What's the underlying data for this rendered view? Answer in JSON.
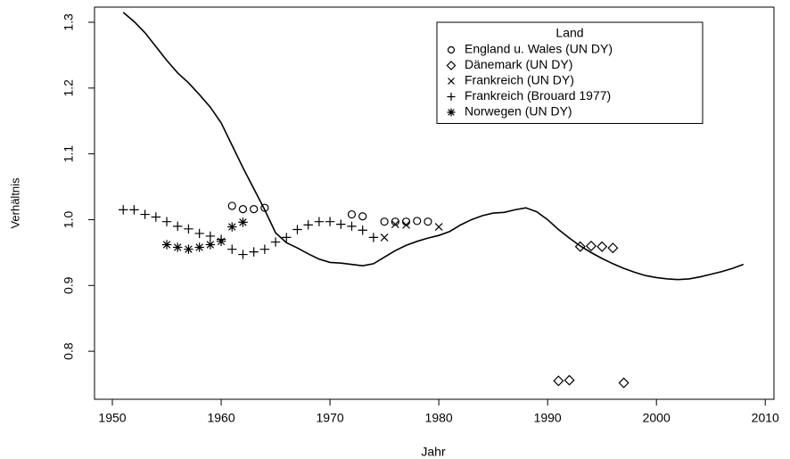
{
  "chart_data": {
    "type": "scatter",
    "x_label": "Jahr",
    "y_label": "Verhältnis",
    "color": "#000000",
    "xlim": [
      1948.36,
      2010.8
    ],
    "ylim": [
      0.727,
      1.323
    ],
    "xticks": [
      1950,
      1960,
      1970,
      1980,
      1990,
      2000,
      2010
    ],
    "yticks": [
      0.8,
      0.9,
      {
        "value": 1,
        "label": "1.0"
      },
      1.1,
      1.2,
      1.3
    ],
    "legend_title": "Land",
    "legend_position": "topright",
    "series": [
      {
        "marker": "line",
        "x": [
          1951,
          1952,
          1953,
          1954,
          1955,
          1956,
          1957,
          1958,
          1959,
          1960,
          1961,
          1962,
          1963,
          1964,
          1965,
          1966,
          1967,
          1968,
          1969,
          1970,
          1971,
          1972,
          1973,
          1974,
          1975,
          1976,
          1977,
          1978,
          1979,
          1980,
          1981,
          1982,
          1983,
          1984,
          1985,
          1986,
          1987,
          1988,
          1989,
          1990,
          1991,
          1992,
          1993,
          1994,
          1995,
          1996,
          1997,
          1998,
          1999,
          2000,
          2001,
          2002,
          2003,
          2004,
          2005,
          2006,
          2007,
          2008
        ],
        "values": [
          1.315,
          1.301,
          1.284,
          1.263,
          1.242,
          1.223,
          1.208,
          1.19,
          1.171,
          1.147,
          1.113,
          1.079,
          1.047,
          1.015,
          0.98,
          0.965,
          0.957,
          0.948,
          0.94,
          0.935,
          0.934,
          0.932,
          0.93,
          0.933,
          0.943,
          0.953,
          0.961,
          0.967,
          0.972,
          0.976,
          0.982,
          0.992,
          1.0,
          1.006,
          1.01,
          1.011,
          1.015,
          1.018,
          1.012,
          1.0,
          0.985,
          0.972,
          0.96,
          0.95,
          0.941,
          0.933,
          0.926,
          0.92,
          0.915,
          0.912,
          0.91,
          0.909,
          0.91,
          0.913,
          0.917,
          0.921,
          0.926,
          0.932
        ]
      },
      {
        "name": "England u. Wales (UN DY)",
        "marker": "circle",
        "x": [
          1961,
          1962,
          1963,
          1964,
          1972,
          1973,
          1975,
          1976,
          1977,
          1978,
          1979
        ],
        "values": [
          1.021,
          1.016,
          1.016,
          1.018,
          1.008,
          1.005,
          0.997,
          0.997,
          0.997,
          0.998,
          0.997
        ]
      },
      {
        "name": "Dänemark (UN DY)",
        "marker": "diamond",
        "x": [
          1991,
          1992,
          1993,
          1994,
          1995,
          1996,
          1997
        ],
        "values": [
          0.755,
          0.756,
          0.959,
          0.96,
          0.959,
          0.957,
          0.752
        ]
      },
      {
        "name": "Frankreich (UN DY)",
        "marker": "cross",
        "x": [
          1975,
          1976,
          1977,
          1980
        ],
        "values": [
          0.973,
          0.993,
          0.992,
          0.989
        ]
      },
      {
        "name": "Frankreich (Brouard 1977)",
        "marker": "plus",
        "x": [
          1951,
          1952,
          1953,
          1954,
          1955,
          1956,
          1957,
          1958,
          1959,
          1960,
          1961,
          1962,
          1963,
          1964,
          1965,
          1966,
          1967,
          1968,
          1969,
          1970,
          1971,
          1972,
          1973,
          1974
        ],
        "values": [
          1.015,
          1.015,
          1.008,
          1.004,
          0.997,
          0.99,
          0.986,
          0.979,
          0.975,
          0.97,
          0.955,
          0.947,
          0.951,
          0.955,
          0.966,
          0.973,
          0.985,
          0.992,
          0.997,
          0.997,
          0.993,
          0.99,
          0.984,
          0.973
        ]
      },
      {
        "name": "Norwegen (UN DY)",
        "marker": "star",
        "x": [
          1955,
          1956,
          1957,
          1958,
          1959,
          1960,
          1961,
          1962
        ],
        "values": [
          0.962,
          0.958,
          0.955,
          0.958,
          0.962,
          0.967,
          0.989,
          0.996
        ]
      }
    ]
  }
}
